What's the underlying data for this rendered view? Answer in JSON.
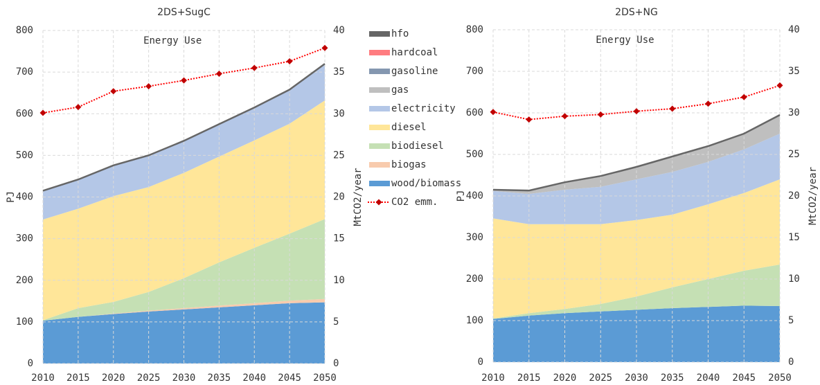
{
  "chart_data": [
    {
      "type": "stacked-area",
      "title": "2DS+SugC",
      "annotation": "Energy Use",
      "ylabel": "PJ",
      "y2label": "MtCO2/year",
      "x": [
        2010,
        2015,
        2020,
        2025,
        2030,
        2035,
        2040,
        2045,
        2050
      ],
      "xlim": [
        2010,
        2050
      ],
      "xticks": [
        2010,
        2015,
        2020,
        2025,
        2030,
        2035,
        2040,
        2045,
        2050
      ],
      "ylim": [
        0,
        800
      ],
      "yticks": [
        0,
        100,
        200,
        300,
        400,
        500,
        600,
        700,
        800
      ],
      "y2lim": [
        0,
        40
      ],
      "y2ticks": [
        0,
        5,
        10,
        15,
        20,
        25,
        30,
        35,
        40
      ],
      "grid": true,
      "legend": "right",
      "series": [
        {
          "name": "wood/biomass",
          "color": "#5b9bd5",
          "values": [
            103,
            112,
            119,
            125,
            130,
            135,
            140,
            145,
            147
          ]
        },
        {
          "name": "biogas",
          "color": "#f8cbad",
          "values": [
            0,
            0,
            1,
            2,
            3,
            4,
            5,
            6,
            8
          ]
        },
        {
          "name": "biodiesel",
          "color": "#c5e0b4",
          "values": [
            1,
            21,
            28,
            45,
            72,
            104,
            133,
            161,
            192
          ]
        },
        {
          "name": "diesel",
          "color": "#ffe699",
          "values": [
            242,
            239,
            254,
            252,
            253,
            254,
            258,
            264,
            285
          ]
        },
        {
          "name": "electricity",
          "color": "#b4c7e7",
          "values": [
            69,
            70,
            74,
            76,
            77,
            78,
            79,
            82,
            88
          ]
        },
        {
          "name": "gas",
          "color": "#bfbfbf",
          "values": [
            0,
            0,
            0,
            0,
            0,
            0,
            0,
            0,
            0
          ]
        },
        {
          "name": "gasoline",
          "color": "#8497b0",
          "values": [
            0,
            0,
            0,
            0,
            0,
            0,
            0,
            0,
            0
          ]
        },
        {
          "name": "hardcoal",
          "color": "#ff7c80",
          "values": [
            0,
            0,
            0,
            0,
            0,
            0,
            0,
            0,
            0
          ]
        },
        {
          "name": "hfo",
          "color": "#666666",
          "values": [
            0,
            0,
            0,
            0,
            0,
            0,
            0,
            0,
            0
          ]
        },
        {
          "name": "CO2 emm.",
          "color": "#ff0000",
          "marker_color": "#c00000",
          "axis": "y2",
          "kind": "line",
          "values": [
            30.1,
            30.8,
            32.7,
            33.3,
            34.0,
            34.8,
            35.5,
            36.3,
            37.9
          ]
        }
      ]
    },
    {
      "type": "stacked-area",
      "title": "2DS+NG",
      "annotation": "Energy Use",
      "ylabel": "PJ",
      "y2label": "MtCO2/year",
      "x": [
        2010,
        2015,
        2020,
        2025,
        2030,
        2035,
        2040,
        2045,
        2050
      ],
      "xlim": [
        2010,
        2050
      ],
      "xticks": [
        2010,
        2015,
        2020,
        2025,
        2030,
        2035,
        2040,
        2045,
        2050
      ],
      "ylim": [
        0,
        800
      ],
      "yticks": [
        0,
        100,
        200,
        300,
        400,
        500,
        600,
        700,
        800
      ],
      "y2lim": [
        0,
        40
      ],
      "y2ticks": [
        0,
        5,
        10,
        15,
        20,
        25,
        30,
        35,
        40
      ],
      "grid": true,
      "series": [
        {
          "color": "#5b9bd5",
          "values": [
            104,
            112,
            118,
            122,
            126,
            130,
            133,
            136,
            135
          ]
        },
        {
          "color": "#f8cbad",
          "values": [
            0,
            0,
            0,
            0,
            0,
            0,
            0,
            0,
            0
          ]
        },
        {
          "color": "#c5e0b4",
          "values": [
            1,
            6,
            10,
            18,
            32,
            50,
            67,
            84,
            100
          ]
        },
        {
          "color": "#ffe699",
          "values": [
            241,
            214,
            204,
            192,
            184,
            175,
            180,
            187,
            205
          ]
        },
        {
          "color": "#b4c7e7",
          "values": [
            66,
            73,
            83,
            90,
            98,
            103,
            102,
            105,
            110
          ]
        },
        {
          "color": "#bfbfbf",
          "values": [
            3,
            8,
            18,
            26,
            30,
            37,
            38,
            38,
            45
          ]
        },
        {
          "color": "#8497b0",
          "values": [
            0,
            0,
            0,
            0,
            0,
            0,
            0,
            0,
            0
          ]
        },
        {
          "color": "#ff7c80",
          "values": [
            0,
            0,
            0,
            0,
            0,
            0,
            0,
            0,
            0
          ]
        },
        {
          "color": "#666666",
          "values": [
            0,
            0,
            0,
            0,
            0,
            0,
            0,
            0,
            0
          ]
        },
        {
          "color": "#ff0000",
          "marker_color": "#c00000",
          "axis": "y2",
          "kind": "line",
          "values": [
            30.1,
            29.2,
            29.6,
            29.8,
            30.2,
            30.5,
            31.1,
            31.9,
            33.3
          ]
        }
      ]
    }
  ]
}
